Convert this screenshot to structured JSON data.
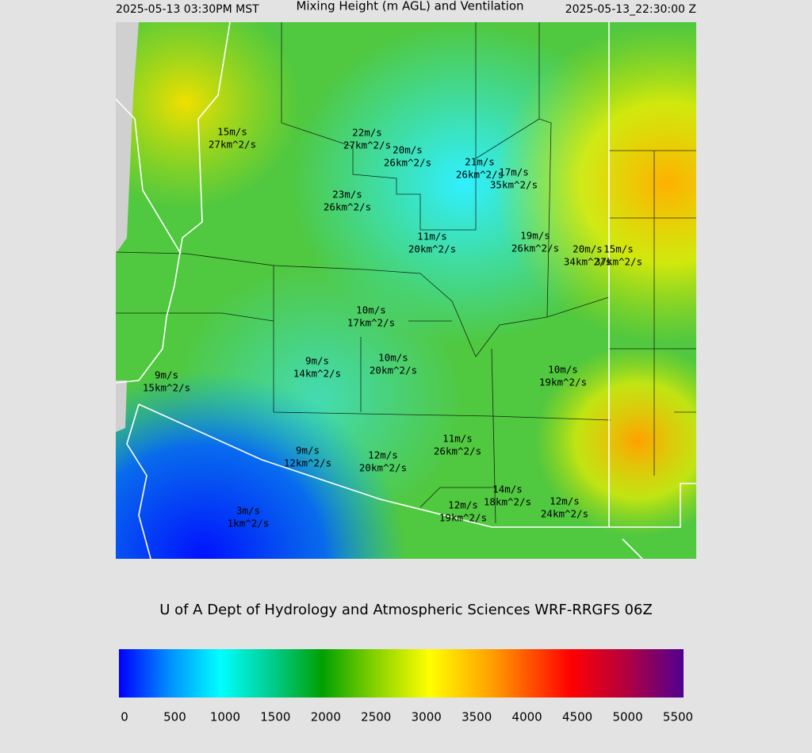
{
  "header": {
    "local_time": "2025-05-13 03:30PM MST",
    "title": "Mixing Height (m AGL) and Ventilation",
    "utc_time": "2025-05-13_22:30:00 Z"
  },
  "labels": [
    {
      "speed": "15m/s",
      "ventilation": "27km^2/s"
    },
    {
      "speed": "22m/s",
      "ventilation": "27km^2/s"
    },
    {
      "speed": "20m/s",
      "ventilation": "26km^2/s"
    },
    {
      "speed": "21m/s",
      "ventilation": "26km^2/s"
    },
    {
      "speed": "17m/s",
      "ventilation": "35km^2/s"
    },
    {
      "speed": "23m/s",
      "ventilation": "26km^2/s"
    },
    {
      "speed": "11m/s",
      "ventilation": "20km^2/s"
    },
    {
      "speed": "19m/s",
      "ventilation": "26km^2/s"
    },
    {
      "speed": "20m/s",
      "ventilation": "34km^2/s"
    },
    {
      "speed": "15m/s",
      "ventilation": "37km^2/s"
    },
    {
      "speed": "10m/s",
      "ventilation": "17km^2/s"
    },
    {
      "speed": "9m/s",
      "ventilation": "14km^2/s"
    },
    {
      "speed": "10m/s",
      "ventilation": "20km^2/s"
    },
    {
      "speed": "9m/s",
      "ventilation": "15km^2/s"
    },
    {
      "speed": "10m/s",
      "ventilation": "19km^2/s"
    },
    {
      "speed": "11m/s",
      "ventilation": "26km^2/s"
    },
    {
      "speed": "9m/s",
      "ventilation": "12km^2/s"
    },
    {
      "speed": "12m/s",
      "ventilation": "20km^2/s"
    },
    {
      "speed": "14m/s",
      "ventilation": "18km^2/s"
    },
    {
      "speed": "12m/s",
      "ventilation": "19km^2/s"
    },
    {
      "speed": "12m/s",
      "ventilation": "24km^2/s"
    },
    {
      "speed": "3m/s",
      "ventilation": "1km^2/s"
    }
  ],
  "footer": "U of A Dept of Hydrology and Atmospheric Sciences WRF-RRGFS 06Z",
  "colorbar": {
    "ticks": [
      0,
      500,
      1000,
      1500,
      2000,
      2500,
      3000,
      3500,
      4000,
      4500,
      5000,
      5500
    ]
  }
}
